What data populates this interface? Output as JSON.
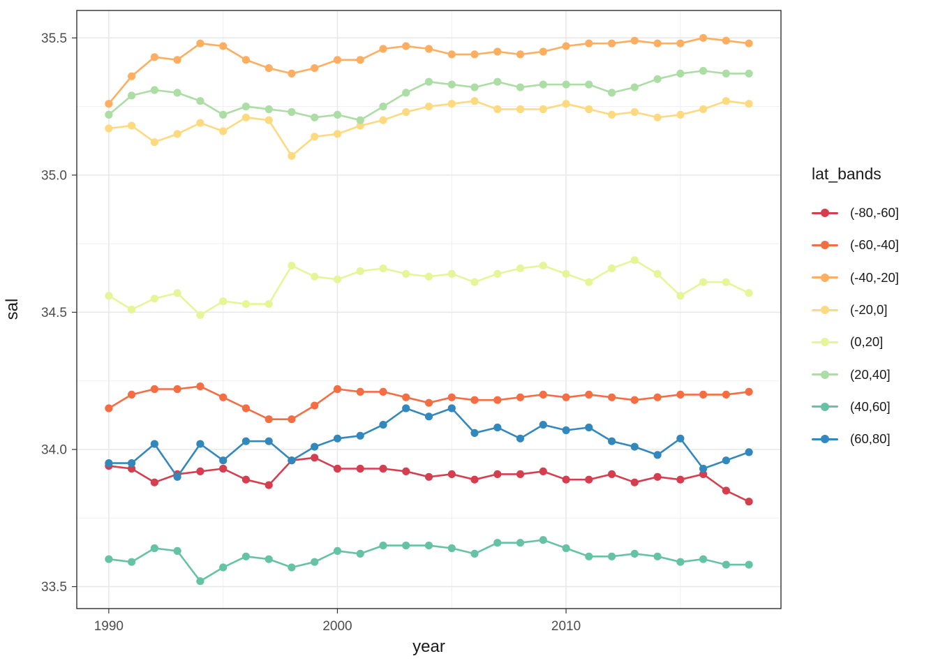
{
  "chart_data": {
    "type": "line",
    "title": "",
    "xlabel": "year",
    "ylabel": "sal",
    "legend_title": "lat_bands",
    "legend_position": "right",
    "grid": true,
    "x_ticks": [
      1990,
      2000,
      2010
    ],
    "x_tick_labels": [
      "1990",
      "2000",
      "2010"
    ],
    "x_minor": [
      1995,
      2005,
      2015
    ],
    "y_ticks": [
      33.5,
      34.0,
      34.5,
      35.0,
      35.5
    ],
    "y_tick_labels": [
      "33.5",
      "34.0",
      "34.5",
      "35.0",
      "35.5"
    ],
    "y_minor": [
      33.75,
      34.25,
      34.75,
      35.25
    ],
    "xlim": [
      1988.6,
      2019.4
    ],
    "ylim": [
      33.42,
      35.6
    ],
    "x": [
      1990,
      1991,
      1992,
      1993,
      1994,
      1995,
      1996,
      1997,
      1998,
      1999,
      2000,
      2001,
      2002,
      2003,
      2004,
      2005,
      2006,
      2007,
      2008,
      2009,
      2010,
      2011,
      2012,
      2013,
      2014,
      2015,
      2016,
      2017,
      2018
    ],
    "series": [
      {
        "name": "(-80,-60]",
        "color": "#d53e4f",
        "values": [
          33.94,
          33.93,
          33.88,
          33.91,
          33.92,
          33.93,
          33.89,
          33.87,
          33.96,
          33.97,
          33.93,
          33.93,
          33.93,
          33.92,
          33.9,
          33.91,
          33.89,
          33.91,
          33.91,
          33.92,
          33.89,
          33.89,
          33.91,
          33.88,
          33.9,
          33.89,
          33.91,
          33.85,
          33.81
        ]
      },
      {
        "name": "(-60,-40]",
        "color": "#f46d43",
        "values": [
          34.15,
          34.2,
          34.22,
          34.22,
          34.23,
          34.19,
          34.15,
          34.11,
          34.11,
          34.16,
          34.22,
          34.21,
          34.21,
          34.19,
          34.17,
          34.19,
          34.18,
          34.18,
          34.19,
          34.2,
          34.19,
          34.2,
          34.19,
          34.18,
          34.19,
          34.2,
          34.2,
          34.2,
          34.21
        ]
      },
      {
        "name": "(-40,-20]",
        "color": "#fdae61",
        "values": [
          35.26,
          35.36,
          35.43,
          35.42,
          35.48,
          35.47,
          35.42,
          35.39,
          35.37,
          35.39,
          35.42,
          35.42,
          35.46,
          35.47,
          35.46,
          35.44,
          35.44,
          35.45,
          35.44,
          35.45,
          35.47,
          35.48,
          35.48,
          35.49,
          35.48,
          35.48,
          35.5,
          35.49,
          35.48
        ]
      },
      {
        "name": "(-20,0]",
        "color": "#fdda80",
        "values": [
          35.17,
          35.18,
          35.12,
          35.15,
          35.19,
          35.16,
          35.21,
          35.2,
          35.07,
          35.14,
          35.15,
          35.18,
          35.2,
          35.23,
          35.25,
          35.26,
          35.27,
          35.24,
          35.24,
          35.24,
          35.26,
          35.24,
          35.22,
          35.23,
          35.21,
          35.22,
          35.24,
          35.27,
          35.26
        ]
      },
      {
        "name": "(0,20]",
        "color": "#e6f598",
        "values": [
          34.56,
          34.51,
          34.55,
          34.57,
          34.49,
          34.54,
          34.53,
          34.53,
          34.67,
          34.63,
          34.62,
          34.65,
          34.66,
          34.64,
          34.63,
          34.64,
          34.61,
          34.64,
          34.66,
          34.67,
          34.64,
          34.61,
          34.66,
          34.69,
          34.64,
          34.56,
          34.61,
          34.61,
          34.57
        ]
      },
      {
        "name": "(20,40]",
        "color": "#abdda4",
        "values": [
          35.22,
          35.29,
          35.31,
          35.3,
          35.27,
          35.22,
          35.25,
          35.24,
          35.23,
          35.21,
          35.22,
          35.2,
          35.25,
          35.3,
          35.34,
          35.33,
          35.32,
          35.34,
          35.32,
          35.33,
          35.33,
          35.33,
          35.3,
          35.32,
          35.35,
          35.37,
          35.38,
          35.37,
          35.37
        ]
      },
      {
        "name": "(40,60]",
        "color": "#66c2a5",
        "values": [
          33.6,
          33.59,
          33.64,
          33.63,
          33.52,
          33.57,
          33.61,
          33.6,
          33.57,
          33.59,
          33.63,
          33.62,
          33.65,
          33.65,
          33.65,
          33.64,
          33.62,
          33.66,
          33.66,
          33.67,
          33.64,
          33.61,
          33.61,
          33.62,
          33.61,
          33.59,
          33.6,
          33.58,
          33.58
        ]
      },
      {
        "name": "(60,80]",
        "color": "#3288bd",
        "values": [
          33.95,
          33.95,
          34.02,
          33.9,
          34.02,
          33.96,
          34.03,
          34.03,
          33.96,
          34.01,
          34.04,
          34.05,
          34.09,
          34.15,
          34.12,
          34.15,
          34.06,
          34.08,
          34.04,
          34.09,
          34.07,
          34.08,
          34.03,
          34.01,
          33.98,
          34.04,
          33.93,
          33.96,
          33.99
        ]
      }
    ],
    "theme": {
      "panel_background": "#ffffff",
      "grid_major_color": "#e7e7e7",
      "grid_minor_color": "#efefef",
      "panel_border_color": "#2f2f2f",
      "tick_mark_color": "#333333",
      "tick_label_color": "#4d4d4d",
      "title_color": "#1a1a1a"
    }
  }
}
